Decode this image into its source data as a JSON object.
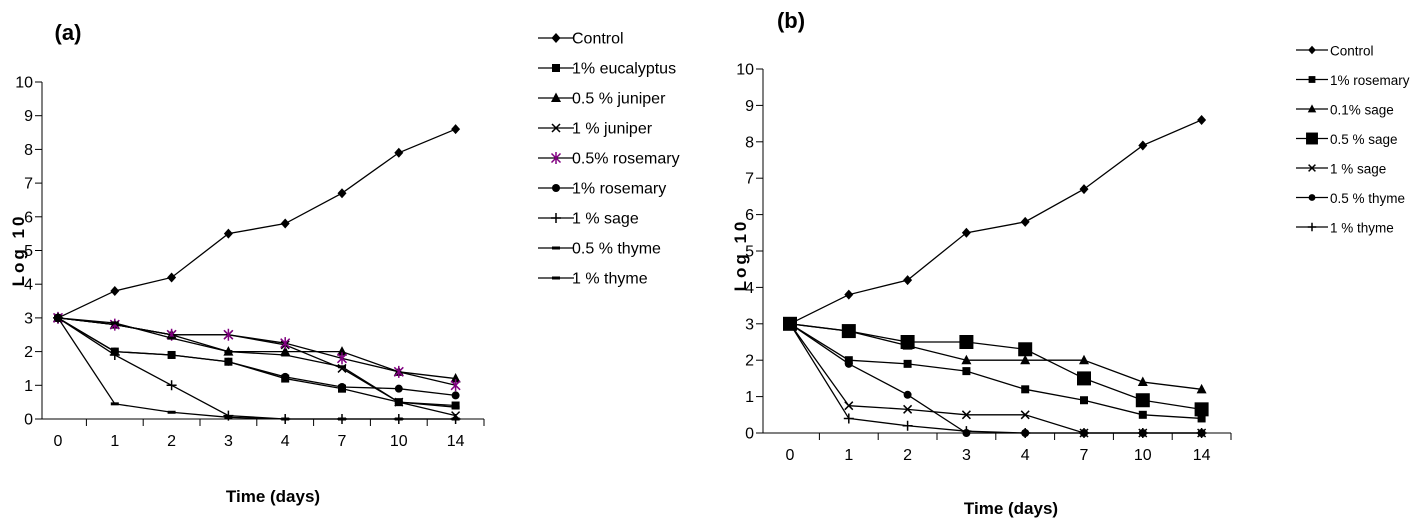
{
  "chart_data": [
    {
      "panel": "(a)",
      "type": "line",
      "xlabel": "Time (days)",
      "ylabel": "Log 10",
      "categories": [
        "0",
        "1",
        "2",
        "3",
        "4",
        "7",
        "10",
        "14"
      ],
      "ylim": [
        0,
        10
      ],
      "yticks": [
        "0",
        "1",
        "2",
        "3",
        "4",
        "5",
        "6",
        "7",
        "8",
        "9",
        "10"
      ],
      "grid": false,
      "legend": "right",
      "series": [
        {
          "name": "Control",
          "marker": "diamond",
          "color": "#000000",
          "values": [
            3.0,
            3.8,
            4.2,
            5.5,
            5.8,
            6.7,
            7.9,
            8.6
          ]
        },
        {
          "name": "1% eucalyptus",
          "marker": "square",
          "color": "#000000",
          "values": [
            3.0,
            2.0,
            1.9,
            1.7,
            1.2,
            0.9,
            0.5,
            0.4
          ]
        },
        {
          "name": "0.5 % juniper",
          "marker": "triangle",
          "color": "#000000",
          "values": [
            3.0,
            2.8,
            2.5,
            2.0,
            2.0,
            2.0,
            1.4,
            1.2
          ]
        },
        {
          "name": "1 % juniper",
          "marker": "x",
          "color": "#000000",
          "values": [
            3.0,
            2.8,
            2.5,
            2.5,
            2.2,
            1.5,
            0.5,
            0.1
          ]
        },
        {
          "name": "0.5% rosemary",
          "marker": "star",
          "color": "#800080",
          "values": [
            3.0,
            2.8,
            2.5,
            2.5,
            2.25,
            1.8,
            1.4,
            1.0
          ]
        },
        {
          "name": "1%  rosemary",
          "marker": "circle",
          "color": "#000000",
          "values": [
            3.0,
            2.0,
            1.9,
            1.7,
            1.25,
            0.95,
            0.9,
            0.7
          ]
        },
        {
          "name": "1 % sage",
          "marker": "plus",
          "color": "#000000",
          "values": [
            3.0,
            1.9,
            1.0,
            0.1,
            0.0,
            0.0,
            0.0,
            0.0
          ]
        },
        {
          "name": "0.5 % thyme",
          "marker": "dash",
          "color": "#000000",
          "values": [
            3.0,
            0.45,
            0.2,
            0.05,
            0.0,
            0.0,
            0.0,
            0.0
          ]
        },
        {
          "name": "1 % thyme",
          "marker": "dash",
          "color": "#000000",
          "values": [
            3.0,
            2.85,
            2.4,
            2.0,
            1.9,
            1.55,
            0.5,
            0.35
          ]
        }
      ]
    },
    {
      "panel": "(b)",
      "type": "line",
      "xlabel": "Time (days)",
      "ylabel": "Log 10",
      "categories": [
        "0",
        "1",
        "2",
        "3",
        "4",
        "7",
        "10",
        "14"
      ],
      "ylim": [
        0,
        10
      ],
      "yticks": [
        "0",
        "1",
        "2",
        "3",
        "4",
        "5",
        "6",
        "7",
        "8",
        "9",
        "10"
      ],
      "grid": false,
      "legend": "right",
      "series": [
        {
          "name": "Control",
          "marker": "diamond",
          "color": "#000000",
          "values": [
            3.0,
            3.8,
            4.2,
            5.5,
            5.8,
            6.7,
            7.9,
            8.6
          ]
        },
        {
          "name": "1% rosemary",
          "marker": "square",
          "color": "#000000",
          "values": [
            3.0,
            2.0,
            1.9,
            1.7,
            1.2,
            0.9,
            0.5,
            0.4
          ]
        },
        {
          "name": "0.1% sage",
          "marker": "triangle",
          "color": "#000000",
          "values": [
            3.0,
            2.8,
            2.4,
            2.0,
            2.0,
            2.0,
            1.4,
            1.2
          ]
        },
        {
          "name": "0.5 % sage",
          "marker": "bigsquare",
          "color": "#000000",
          "values": [
            3.0,
            2.8,
            2.5,
            2.5,
            2.3,
            1.5,
            0.9,
            0.65
          ]
        },
        {
          "name": "1 % sage",
          "marker": "x",
          "color": "#000000",
          "values": [
            3.0,
            0.75,
            0.65,
            0.5,
            0.5,
            0.0,
            0.0,
            0.0
          ]
        },
        {
          "name": "0.5 % thyme",
          "marker": "circle",
          "color": "#000000",
          "values": [
            3.0,
            1.9,
            1.05,
            0.0,
            0.0,
            0.0,
            0.0,
            0.0
          ]
        },
        {
          "name": "1 % thyme",
          "marker": "plus",
          "color": "#000000",
          "values": [
            3.0,
            0.4,
            0.2,
            0.05,
            0.0,
            0.0,
            0.0,
            0.0
          ]
        }
      ]
    }
  ]
}
